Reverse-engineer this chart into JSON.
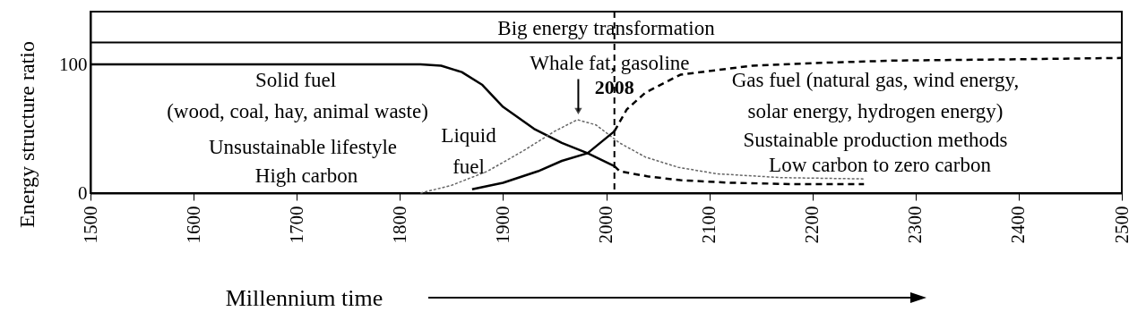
{
  "chart_data": {
    "type": "line",
    "xlabel": "Millennium time",
    "ylabel": "Energy structure ratio",
    "xlim": [
      1500,
      2500
    ],
    "xticks": [
      1500,
      1600,
      1700,
      1800,
      1900,
      2000,
      2100,
      2200,
      2300,
      2400,
      2500
    ],
    "ylim": [
      0,
      141
    ],
    "yticks": [
      0,
      100
    ],
    "grid": false,
    "marker": "none",
    "series": [
      {
        "color": "#000000",
        "line_style": "solid",
        "x": [
          1500,
          1600,
          1700,
          1800,
          1820,
          1840,
          1860,
          1880,
          1900,
          1930,
          1957,
          1982,
          2008
        ],
        "values": [
          100,
          100,
          100,
          100,
          100,
          99,
          94,
          84,
          67,
          50,
          39,
          31,
          21
        ]
      },
      {
        "color": "#000000",
        "line_style": "dashed",
        "x": [
          2008,
          2013,
          2040,
          2072,
          2120,
          2180,
          2250
        ],
        "values": [
          21,
          17,
          13,
          10,
          8,
          7,
          7
        ]
      },
      {
        "color": "#666666",
        "line_style": "dashed",
        "x": [
          1820,
          1850,
          1885,
          1920,
          1950,
          1972,
          1990,
          2013,
          2038,
          2070,
          2107,
          2170,
          2250
        ],
        "values": [
          0,
          6,
          17,
          33,
          48,
          57,
          53,
          39,
          28,
          20,
          15,
          12,
          11
        ]
      },
      {
        "color": "#000000",
        "line_style": "solid",
        "x": [
          1870,
          1900,
          1934,
          1957,
          1982,
          2008
        ],
        "values": [
          3,
          8,
          17,
          25,
          31,
          48
        ]
      },
      {
        "color": "#000000",
        "line_style": "dashed",
        "x": [
          2008,
          2020,
          2038,
          2072,
          2142,
          2200,
          2281,
          2400,
          2500
        ],
        "values": [
          48,
          65,
          78,
          92,
          99,
          101,
          103,
          104,
          105
        ]
      }
    ],
    "ref_lines": [
      {
        "axis": "x",
        "value": 2008,
        "label": "2008",
        "line_style": "dashed"
      },
      {
        "axis": "y",
        "value": 117,
        "line_style": "solid"
      }
    ],
    "annotations": [
      "Big energy transformation",
      "Solid fuel",
      "(wood, coal, hay, animal waste)",
      "Unsustainable lifestyle",
      "High carbon",
      "Liquid",
      "fuel",
      "Gas fuel (natural gas, wind energy,",
      "solar energy, hydrogen energy)",
      "Sustainable production methods",
      "Low carbon to zero carbon",
      {
        "text": "Whale fat, gasoline",
        "x": 1973,
        "y": 58
      }
    ]
  }
}
